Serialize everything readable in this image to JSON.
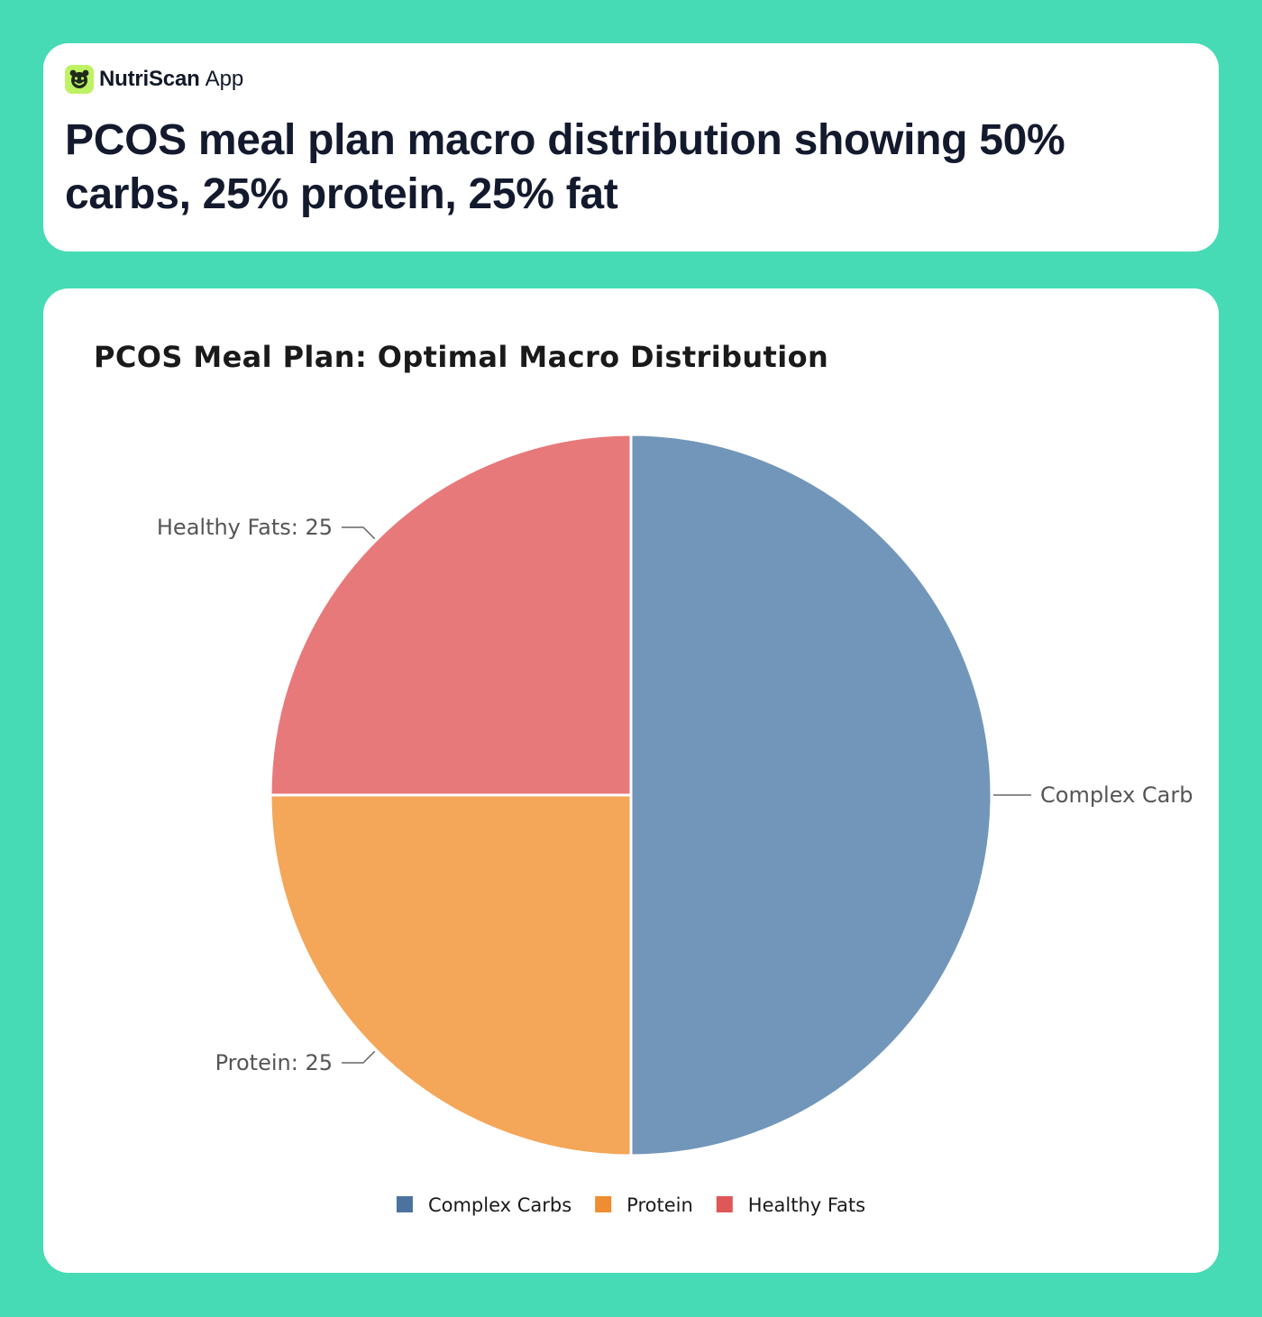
{
  "brand": {
    "name": "NutriScan",
    "suffix": "App",
    "logo_icon": "smiley-face-icon",
    "logo_color": "#bef264"
  },
  "headline": "PCOS meal plan macro distribution showing 50% carbs, 25% protein, 25% fat",
  "colors": {
    "page_background": "#46dbb5",
    "card_background": "#ffffff",
    "headline_text": "#141a2e"
  },
  "chart_data": {
    "type": "pie",
    "title": "PCOS Meal Plan: Optimal Macro Distribution",
    "start_angle": "12 o'clock",
    "direction": "clockwise",
    "slices": [
      {
        "label": "Complex Carbs",
        "value": 50,
        "callout": "Complex Carb",
        "color": "#7296b9",
        "legend_color": "#4c72a0"
      },
      {
        "label": "Protein",
        "value": 25,
        "callout": "Protein: 25",
        "color": "#f4a659",
        "legend_color": "#f08c31"
      },
      {
        "label": "Healthy Fats",
        "value": 25,
        "callout": "Healthy Fats: 25",
        "color": "#e8797a",
        "legend_color": "#e05759"
      }
    ],
    "legend": {
      "position": "bottom-center",
      "items": [
        "Complex Carbs",
        "Protein",
        "Healthy Fats"
      ]
    }
  }
}
